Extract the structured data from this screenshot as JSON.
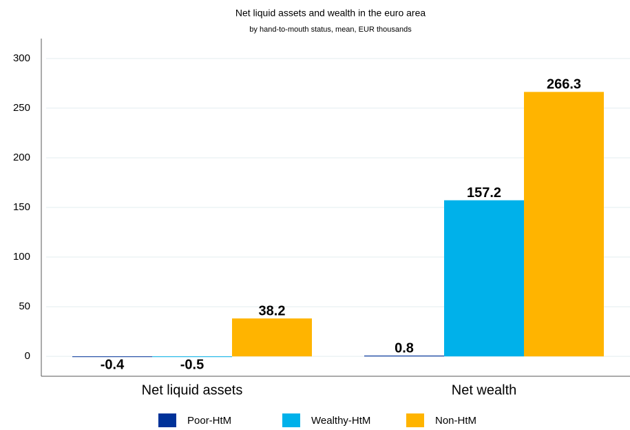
{
  "chart_data": {
    "type": "bar",
    "title": "Net liquid assets and wealth in the euro area",
    "subtitle": "by hand-to-mouth status, mean, EUR thousands",
    "categories": [
      "Net liquid assets",
      "Net wealth"
    ],
    "series": [
      {
        "name": "Poor-HtM",
        "color": "#003299",
        "values": [
          -0.4,
          0.8
        ]
      },
      {
        "name": "Wealthy-HtM",
        "color": "#00b1ea",
        "values": [
          -0.5,
          157.2
        ]
      },
      {
        "name": "Non-HtM",
        "color": "#ffb400",
        "values": [
          38.2,
          266.3
        ]
      }
    ],
    "ylim": [
      -20,
      320
    ],
    "yticks": [
      0,
      50,
      100,
      150,
      200,
      250,
      300
    ],
    "grid": true,
    "legend": "bottom"
  }
}
